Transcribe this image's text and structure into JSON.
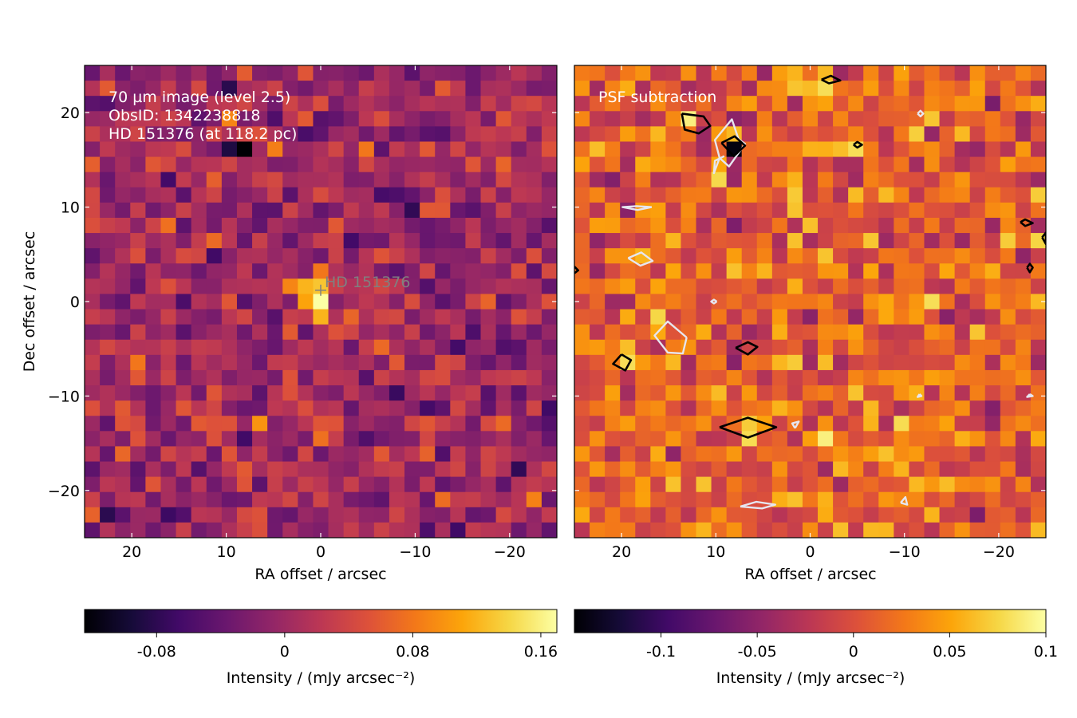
{
  "chart_data": [
    {
      "type": "heatmap",
      "panel": "left",
      "annotation_lines": [
        "70 µm image (level 2.5)",
        "ObsID: 1342238818",
        "HD 151376 (at 118.2 pc)"
      ],
      "star_label": "HD 151376",
      "star_position": [
        0,
        1.2
      ],
      "xlabel": "RA offset / arcsec",
      "ylabel": "Dec offset / arcsec",
      "xlim": [
        25,
        -25
      ],
      "ylim": [
        -25,
        25
      ],
      "xticks": [
        20,
        10,
        0,
        -10,
        -20
      ],
      "xtick_labels": [
        "20",
        "10",
        "0",
        "−10",
        "−20"
      ],
      "yticks": [
        20,
        10,
        0,
        -10,
        -20
      ],
      "ytick_labels": [
        "20",
        "10",
        "0",
        "−10",
        "−20"
      ],
      "pixel_size_arcsec": 1.6,
      "grid": "31x31",
      "colormap": "inferno",
      "vmin": -0.125,
      "vmax": 0.17,
      "features": [
        {
          "ra": 8.0,
          "dec": 16.0,
          "value": -0.125
        },
        {
          "ra": 10.0,
          "dec": 16.0,
          "value": -0.09
        },
        {
          "ra": 0.0,
          "dec": 0.0,
          "value": 0.17
        },
        {
          "ra": 0.0,
          "dec": 1.6,
          "value": 0.13
        },
        {
          "ra": 1.6,
          "dec": 1.6,
          "value": 0.12
        },
        {
          "ra": -0.5,
          "dec": -1.6,
          "value": 0.12
        },
        {
          "ra": 1.6,
          "dec": 0.0,
          "value": 0.11
        },
        {
          "ra": 3.2,
          "dec": 1.6,
          "value": 0.09
        },
        {
          "ra": 0.0,
          "dec": 3.2,
          "value": 0.08
        },
        {
          "ra": 6.5,
          "dec": -12.8,
          "value": 0.1
        },
        {
          "ra": 10.0,
          "dec": 19.0,
          "value": 0.09
        },
        {
          "ra": -4.5,
          "dec": 16.0,
          "value": 0.08
        },
        {
          "ra": 19.0,
          "dec": -6.5,
          "value": 0.08
        }
      ],
      "colorbar": {
        "ticks": [
          -0.08,
          0,
          0.08,
          0.16
        ],
        "tick_labels": [
          "-0.08",
          "0",
          "0.08",
          "0.16"
        ],
        "label": "Intensity / (mJy arcsec⁻²)"
      }
    },
    {
      "type": "heatmap",
      "panel": "right",
      "annotation_lines": [
        "PSF subtraction"
      ],
      "xlabel": "RA offset / arcsec",
      "xlim": [
        25,
        -25
      ],
      "ylim": [
        -25,
        25
      ],
      "xticks": [
        20,
        10,
        0,
        -10,
        -20
      ],
      "xtick_labels": [
        "20",
        "10",
        "0",
        "−10",
        "−20"
      ],
      "grid": "31x31",
      "colormap": "inferno",
      "vmin": -0.145,
      "vmax": 0.1,
      "features": [
        {
          "ra": 8.0,
          "dec": 16.0,
          "value": -0.14
        },
        {
          "ra": 12.8,
          "dec": 19.2,
          "value": 0.09
        },
        {
          "ra": -1.6,
          "dec": 23.2,
          "value": 0.08
        },
        {
          "ra": -4.8,
          "dec": 16.0,
          "value": 0.08
        },
        {
          "ra": 19.2,
          "dec": -6.4,
          "value": 0.08
        },
        {
          "ra": 6.4,
          "dec": -12.8,
          "value": 0.07
        },
        {
          "ra": -1.6,
          "dec": -14.4,
          "value": 0.09
        },
        {
          "ra": -12.8,
          "dec": 0.0,
          "value": 0.08
        },
        {
          "ra": -20.8,
          "dec": 6.4,
          "value": 0.07
        },
        {
          "ra": -24.0,
          "dec": 11.2,
          "value": 0.07
        }
      ],
      "contours_black": [
        [
          [
            -1.2,
            23.5
          ],
          [
            -2.2,
            23.9
          ],
          [
            -3.2,
            23.4
          ],
          [
            -2.0,
            23.1
          ],
          [
            -1.2,
            23.5
          ]
        ],
        [
          [
            13.6,
            19.9
          ],
          [
            11.3,
            19.6
          ],
          [
            10.6,
            18.6
          ],
          [
            11.8,
            17.8
          ],
          [
            13.3,
            18.2
          ],
          [
            13.6,
            19.9
          ]
        ],
        [
          [
            9.4,
            16.8
          ],
          [
            8.0,
            17.5
          ],
          [
            6.9,
            16.5
          ],
          [
            8.1,
            15.4
          ],
          [
            9.4,
            16.8
          ]
        ],
        [
          [
            -4.6,
            16.6
          ],
          [
            -5.0,
            16.9
          ],
          [
            -5.5,
            16.6
          ],
          [
            -5.0,
            16.3
          ],
          [
            -4.6,
            16.6
          ]
        ],
        [
          [
            -22.3,
            8.4
          ],
          [
            -22.8,
            8.7
          ],
          [
            -23.6,
            8.3
          ],
          [
            -22.8,
            8.0
          ],
          [
            -22.3,
            8.4
          ]
        ],
        [
          [
            -24.6,
            6.8
          ],
          [
            -25.0,
            7.3
          ],
          [
            -25.0,
            6.1
          ],
          [
            -24.6,
            6.8
          ]
        ],
        [
          [
            25.0,
            3.7
          ],
          [
            24.6,
            3.3
          ],
          [
            25.0,
            3.0
          ]
        ],
        [
          [
            -23.0,
            3.6
          ],
          [
            -23.3,
            4.0
          ],
          [
            -23.6,
            3.6
          ],
          [
            -23.3,
            3.1
          ],
          [
            -23.0,
            3.6
          ]
        ],
        [
          [
            7.9,
            -4.9
          ],
          [
            6.6,
            -4.3
          ],
          [
            5.6,
            -4.8
          ],
          [
            6.6,
            -5.6
          ],
          [
            7.9,
            -4.9
          ]
        ],
        [
          [
            20.0,
            -5.6
          ],
          [
            19.0,
            -6.2
          ],
          [
            19.6,
            -7.3
          ],
          [
            20.9,
            -6.6
          ],
          [
            20.0,
            -5.6
          ]
        ],
        [
          [
            9.6,
            -13.3
          ],
          [
            6.6,
            -12.3
          ],
          [
            3.6,
            -13.3
          ],
          [
            6.6,
            -14.4
          ],
          [
            9.6,
            -13.3
          ]
        ]
      ],
      "contours_white": [
        [
          [
            7.6,
            17.2
          ],
          [
            6.9,
            16.7
          ],
          [
            8.6,
            14.3
          ],
          [
            9.6,
            15.2
          ],
          [
            10.1,
            17.1
          ],
          [
            8.3,
            19.3
          ],
          [
            7.6,
            17.2
          ]
        ],
        [
          [
            9.1,
            15.4
          ],
          [
            10.1,
            14.9
          ],
          [
            10.2,
            13.6
          ],
          [
            9.6,
            15.2
          ]
        ],
        [
          [
            -11.4,
            19.9
          ],
          [
            -11.7,
            20.2
          ],
          [
            -12.0,
            19.9
          ],
          [
            -11.7,
            19.6
          ],
          [
            -11.4,
            19.9
          ]
        ],
        [
          [
            16.8,
            10.0
          ],
          [
            18.4,
            10.1
          ],
          [
            19.9,
            10.0
          ],
          [
            18.3,
            9.7
          ],
          [
            16.8,
            10.0
          ]
        ],
        [
          [
            19.3,
            4.6
          ],
          [
            17.9,
            5.2
          ],
          [
            16.7,
            4.3
          ],
          [
            18.0,
            3.8
          ],
          [
            19.3,
            4.6
          ]
        ],
        [
          [
            9.9,
            0.0
          ],
          [
            10.2,
            0.2
          ],
          [
            10.5,
            0.0
          ],
          [
            10.2,
            -0.2
          ],
          [
            9.9,
            0.0
          ]
        ],
        [
          [
            13.1,
            -3.8
          ],
          [
            13.5,
            -5.5
          ],
          [
            15.1,
            -5.4
          ],
          [
            16.5,
            -3.6
          ],
          [
            15.1,
            -2.1
          ],
          [
            13.1,
            -3.8
          ]
        ],
        [
          [
            1.6,
            -13.4
          ],
          [
            1.9,
            -12.9
          ],
          [
            1.2,
            -12.7
          ],
          [
            1.6,
            -13.4
          ]
        ],
        [
          [
            -11.6,
            -9.8
          ],
          [
            -11.8,
            -10.0
          ],
          [
            -11.4,
            -10.1
          ],
          [
            -11.6,
            -9.8
          ]
        ],
        [
          [
            -23.3,
            -9.8
          ],
          [
            -23.6,
            -10.0
          ],
          [
            -23.0,
            -10.1
          ],
          [
            -23.3,
            -9.8
          ]
        ],
        [
          [
            7.4,
            -21.7
          ],
          [
            5.1,
            -21.9
          ],
          [
            3.7,
            -21.5
          ],
          [
            5.7,
            -21.2
          ],
          [
            7.4,
            -21.7
          ]
        ],
        [
          [
            -9.6,
            -21.3
          ],
          [
            -10.1,
            -20.7
          ],
          [
            -10.3,
            -21.5
          ],
          [
            -9.6,
            -21.3
          ]
        ]
      ],
      "colorbar": {
        "ticks": [
          -0.1,
          -0.05,
          0,
          0.05,
          0.1
        ],
        "tick_labels": [
          "-0.1",
          "-0.05",
          "0",
          "0.05",
          "0.1"
        ],
        "label": "Intensity / (mJy arcsec⁻²)"
      }
    }
  ]
}
